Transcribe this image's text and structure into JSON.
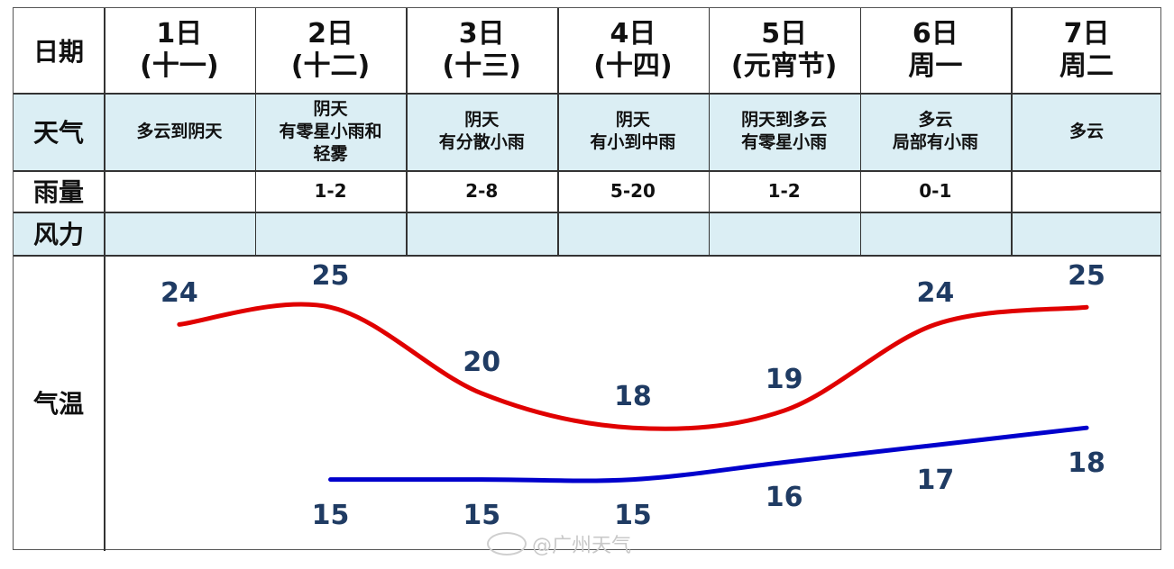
{
  "row_labels": {
    "date": "日期",
    "weather": "天气",
    "rain": "雨量",
    "wind": "风力",
    "temp": "气温"
  },
  "days": [
    {
      "date": "1日\n(十一)",
      "weather": "多云到阴天",
      "rain": "",
      "wind": ""
    },
    {
      "date": "2日\n(十二)",
      "weather": "阴天\n有零星小雨和\n轻雾",
      "rain": "1-2",
      "wind": ""
    },
    {
      "date": "3日\n(十三)",
      "weather": "阴天\n有分散小雨",
      "rain": "2-8",
      "wind": ""
    },
    {
      "date": "4日\n(十四)",
      "weather": "阴天\n有小到中雨",
      "rain": "5-20",
      "wind": ""
    },
    {
      "date": "5日\n(元宵节)",
      "weather": "阴天到多云\n有零星小雨",
      "rain": "1-2",
      "wind": ""
    },
    {
      "date": "6日\n周一",
      "weather": "多云\n局部有小雨",
      "rain": "0-1",
      "wind": ""
    },
    {
      "date": "7日\n周二",
      "weather": "多云",
      "rain": "",
      "wind": ""
    }
  ],
  "chart_data": {
    "type": "line",
    "categories": [
      "1日",
      "2日",
      "3日",
      "4日",
      "5日",
      "6日",
      "7日"
    ],
    "series": [
      {
        "color": "#e00000",
        "values": [
          24,
          25,
          20,
          18,
          19,
          24,
          25
        ]
      },
      {
        "color": "#0000cc",
        "values": [
          null,
          15,
          15,
          15,
          16,
          17,
          18
        ]
      }
    ],
    "ylim": [
      12,
      27
    ]
  },
  "watermark": "@广州天气"
}
